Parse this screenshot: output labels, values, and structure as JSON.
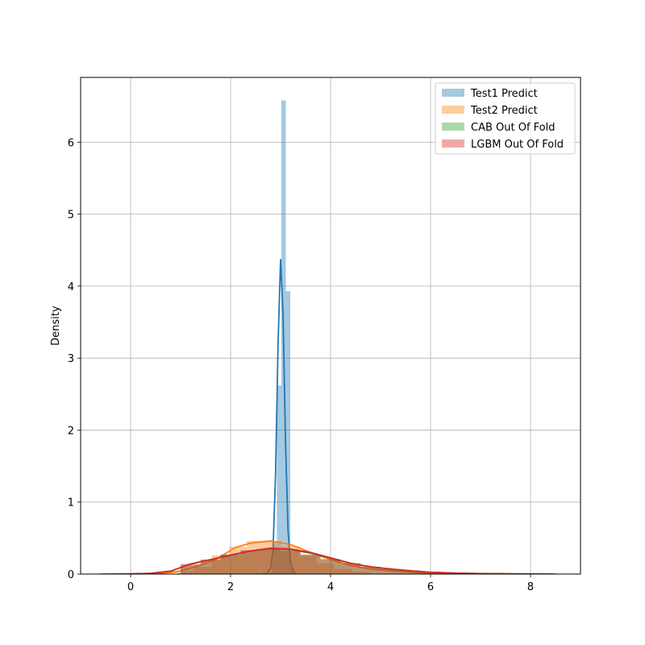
{
  "chart_data": {
    "type": "area",
    "title": "",
    "xlabel": "",
    "ylabel": "Density",
    "xlim": [
      -1,
      9
    ],
    "ylim": [
      0,
      6.9
    ],
    "xticks": [
      0,
      2,
      4,
      6,
      8
    ],
    "yticks": [
      0,
      1,
      2,
      3,
      4,
      5,
      6
    ],
    "grid": true,
    "legend_position": "upper-right",
    "series": [
      {
        "name": "Test1 Predict",
        "color": "#1f77b4",
        "hist_bin_width": 0.09,
        "hist": [
          {
            "x": 2.79,
            "y": 0.02
          },
          {
            "x": 2.88,
            "y": 0.45
          },
          {
            "x": 2.97,
            "y": 2.62
          },
          {
            "x": 3.06,
            "y": 6.58
          },
          {
            "x": 3.15,
            "y": 3.93
          },
          {
            "x": 3.24,
            "y": 0.08
          }
        ],
        "kde": [
          [
            2.62,
            0.0
          ],
          [
            2.72,
            0.01
          ],
          [
            2.8,
            0.08
          ],
          [
            2.85,
            0.35
          ],
          [
            2.9,
            1.4
          ],
          [
            2.95,
            3.2
          ],
          [
            3.0,
            4.37
          ],
          [
            3.05,
            3.6
          ],
          [
            3.1,
            1.8
          ],
          [
            3.15,
            0.6
          ],
          [
            3.2,
            0.15
          ],
          [
            3.26,
            0.02
          ],
          [
            3.32,
            0.0
          ]
        ]
      },
      {
        "name": "Test2 Predict",
        "color": "#ff7f0e",
        "hist_bin_width": 0.35,
        "hist": [
          {
            "x": 1.1,
            "y": 0.04
          },
          {
            "x": 1.45,
            "y": 0.1
          },
          {
            "x": 1.8,
            "y": 0.26
          },
          {
            "x": 2.15,
            "y": 0.38
          },
          {
            "x": 2.5,
            "y": 0.46
          },
          {
            "x": 2.85,
            "y": 0.46
          },
          {
            "x": 3.2,
            "y": 0.39
          },
          {
            "x": 3.55,
            "y": 0.25
          },
          {
            "x": 3.9,
            "y": 0.15
          },
          {
            "x": 4.25,
            "y": 0.07
          },
          {
            "x": 4.6,
            "y": 0.03
          }
        ],
        "kde": [
          [
            0.0,
            0.0
          ],
          [
            0.5,
            0.005
          ],
          [
            0.9,
            0.03
          ],
          [
            1.3,
            0.1
          ],
          [
            1.7,
            0.2
          ],
          [
            2.1,
            0.37
          ],
          [
            2.4,
            0.43
          ],
          [
            2.8,
            0.46
          ],
          [
            3.2,
            0.41
          ],
          [
            3.6,
            0.3
          ],
          [
            4.0,
            0.2
          ],
          [
            4.4,
            0.12
          ],
          [
            4.8,
            0.07
          ],
          [
            5.3,
            0.04
          ],
          [
            5.8,
            0.02
          ],
          [
            6.5,
            0.008
          ],
          [
            7.5,
            0.003
          ],
          [
            8.4,
            0.0
          ]
        ]
      },
      {
        "name": "CAB Out Of Fold",
        "color": "#2ca02c",
        "hist_bin_width": 0.4,
        "hist": [
          {
            "x": 1.2,
            "y": 0.13
          },
          {
            "x": 1.6,
            "y": 0.2
          },
          {
            "x": 2.0,
            "y": 0.27
          },
          {
            "x": 2.4,
            "y": 0.33
          },
          {
            "x": 2.8,
            "y": 0.35
          },
          {
            "x": 3.2,
            "y": 0.32
          },
          {
            "x": 3.6,
            "y": 0.27
          },
          {
            "x": 4.0,
            "y": 0.2
          },
          {
            "x": 4.4,
            "y": 0.15
          },
          {
            "x": 4.8,
            "y": 0.1
          },
          {
            "x": 5.2,
            "y": 0.07
          },
          {
            "x": 5.6,
            "y": 0.05
          },
          {
            "x": 6.0,
            "y": 0.03
          }
        ],
        "kde": [
          [
            -0.6,
            0.0
          ],
          [
            0.0,
            0.002
          ],
          [
            0.4,
            0.01
          ],
          [
            0.8,
            0.04
          ],
          [
            1.2,
            0.14
          ],
          [
            1.6,
            0.2
          ],
          [
            2.0,
            0.26
          ],
          [
            2.4,
            0.32
          ],
          [
            2.8,
            0.355
          ],
          [
            3.2,
            0.34
          ],
          [
            3.6,
            0.29
          ],
          [
            4.0,
            0.22
          ],
          [
            4.4,
            0.15
          ],
          [
            4.8,
            0.1
          ],
          [
            5.2,
            0.07
          ],
          [
            5.6,
            0.045
          ],
          [
            6.0,
            0.025
          ],
          [
            6.5,
            0.012
          ],
          [
            7.0,
            0.006
          ],
          [
            7.6,
            0.002
          ],
          [
            8.5,
            0.0
          ]
        ]
      },
      {
        "name": "LGBM Out Of Fold",
        "color": "#d62728",
        "hist_bin_width": 0.4,
        "hist": [
          {
            "x": 1.2,
            "y": 0.14
          },
          {
            "x": 1.6,
            "y": 0.2
          },
          {
            "x": 2.0,
            "y": 0.27
          },
          {
            "x": 2.4,
            "y": 0.33
          },
          {
            "x": 2.8,
            "y": 0.35
          },
          {
            "x": 3.2,
            "y": 0.33
          },
          {
            "x": 3.6,
            "y": 0.27
          },
          {
            "x": 4.0,
            "y": 0.21
          },
          {
            "x": 4.4,
            "y": 0.15
          },
          {
            "x": 4.8,
            "y": 0.1
          },
          {
            "x": 5.2,
            "y": 0.07
          },
          {
            "x": 5.6,
            "y": 0.05
          },
          {
            "x": 6.0,
            "y": 0.03
          }
        ],
        "kde": [
          [
            -0.3,
            0.0
          ],
          [
            0.0,
            0.002
          ],
          [
            0.4,
            0.01
          ],
          [
            0.8,
            0.04
          ],
          [
            1.2,
            0.14
          ],
          [
            1.6,
            0.2
          ],
          [
            2.0,
            0.265
          ],
          [
            2.4,
            0.32
          ],
          [
            2.8,
            0.36
          ],
          [
            3.2,
            0.345
          ],
          [
            3.6,
            0.3
          ],
          [
            4.0,
            0.225
          ],
          [
            4.4,
            0.15
          ],
          [
            4.8,
            0.1
          ],
          [
            5.2,
            0.07
          ],
          [
            5.6,
            0.045
          ],
          [
            6.0,
            0.025
          ],
          [
            6.5,
            0.012
          ],
          [
            7.0,
            0.006
          ],
          [
            7.6,
            0.002
          ],
          [
            8.3,
            0.0
          ]
        ]
      }
    ]
  }
}
